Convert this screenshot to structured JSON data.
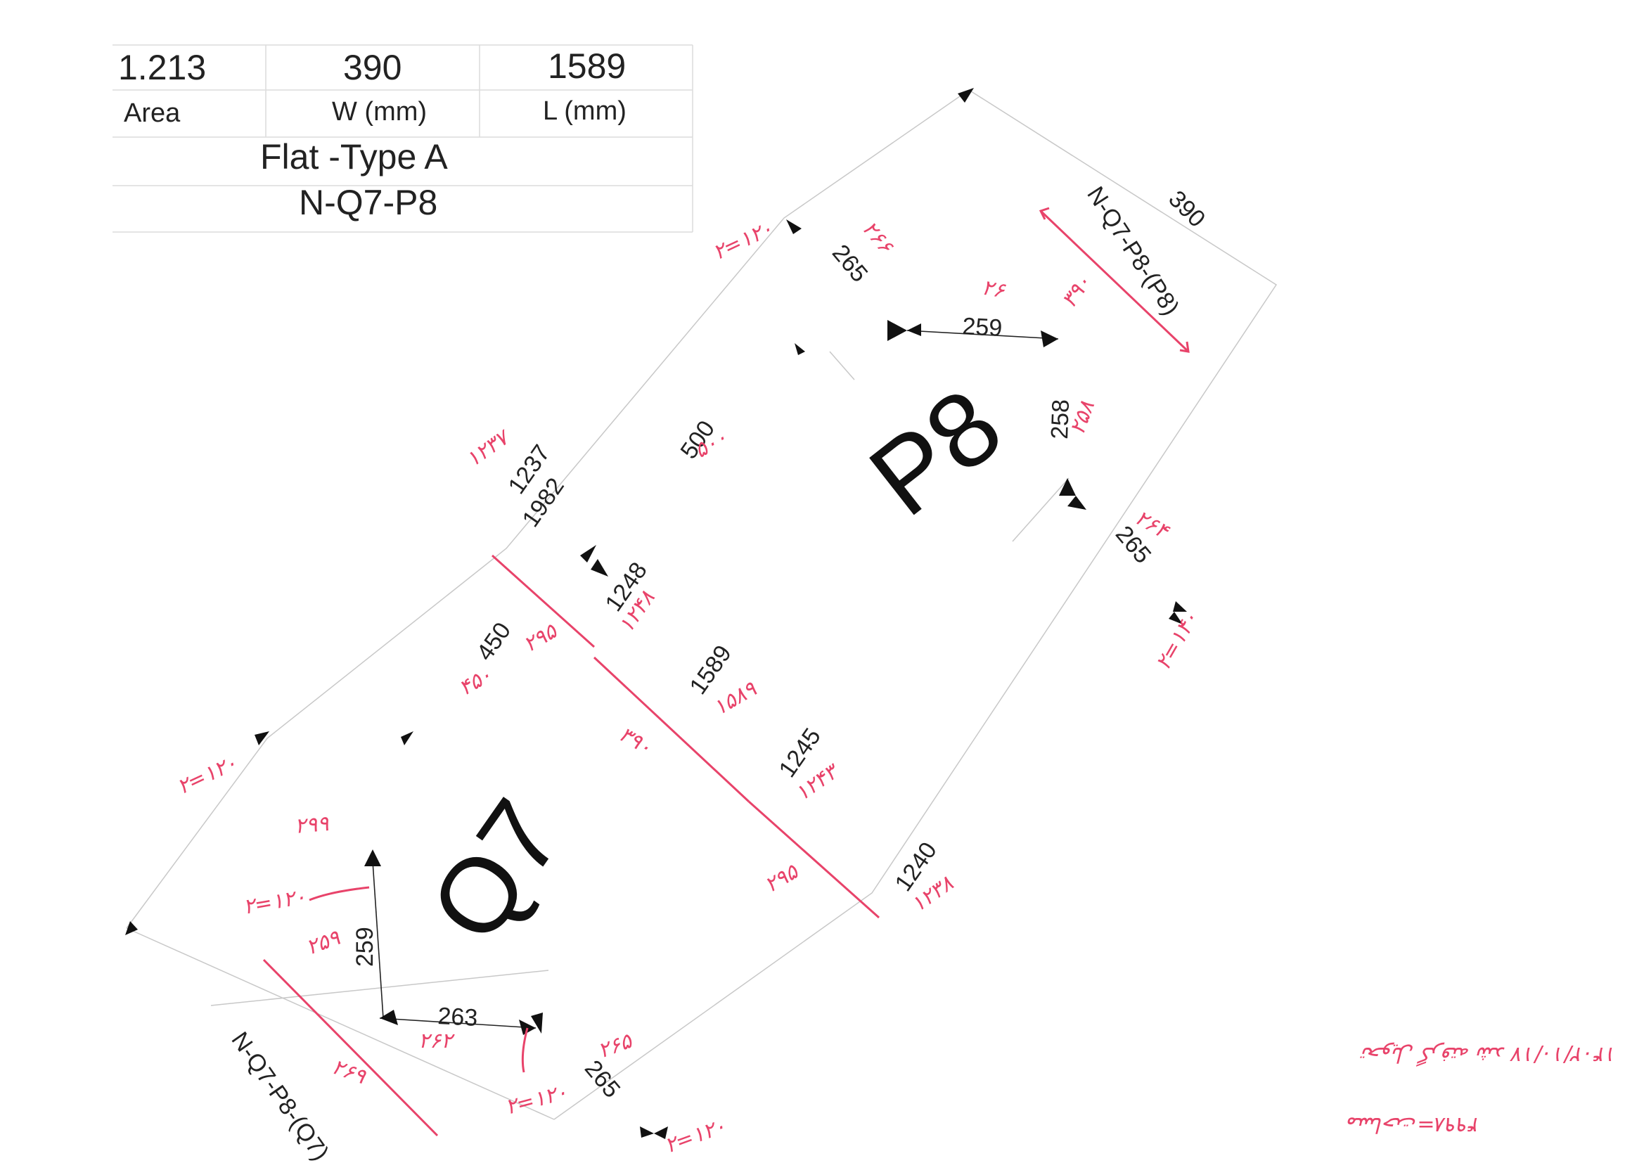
{
  "title_block": {
    "area_value": "1.213",
    "area_label": "Area",
    "width_value": "390",
    "width_label": "W (mm)",
    "length_value": "1589",
    "length_label": "L (mm)",
    "type_label": "Flat -Type A",
    "piece_code": "N-Q7-P8"
  },
  "labels": {
    "p8": "P8",
    "q7": "Q7",
    "edge_p8": "N-Q7-P8-(P8)",
    "edge_q7": "N-Q7-P8-(Q7)"
  },
  "dimensions": {
    "d390": "390",
    "d265_top": "265",
    "d259_top": "259",
    "d258": "258",
    "d265_right": "265",
    "d500": "500",
    "d1237": "1237",
    "d1982": "1982",
    "d1248": "1248",
    "d450": "450",
    "d1589": "1589",
    "d1245": "1245",
    "d1240": "1240",
    "d259_left": "259",
    "d263": "263",
    "d265_bottom": "265"
  },
  "handwriting": {
    "h1": "۲=۱۲۰",
    "h2": "۲۶۶",
    "h3": "۲۶",
    "h4": "۳۹۰",
    "h5": "۲۵۸",
    "h6": "۲۶۴",
    "h7": "۲=۱۴۰",
    "h8": "۱۲۳۷",
    "h9": "۵۰۰",
    "h10": "۱۲۴۸",
    "h11": "۲۹۵",
    "h12": "۴۵۰",
    "h13": "۱۵۸۹",
    "h14": "۳۹۰",
    "h15": "۱۲۴۳",
    "h16": "۲۹۵",
    "h17": "۱۲۳۸",
    "h18": "۲=۱۲۰",
    "h19": "۲۹۹",
    "h20": "۲=۱۲۰",
    "h21": "۲۵۹",
    "h22": "۲۶۲",
    "h23": "۲۶۹",
    "h24": "۲=۱۲۰",
    "h25": "۲۶۵",
    "h26": "۲=۱۲۰",
    "note1": "۱۴۰۲/۱۰/۱۷ تحویل گرفته شد",
    "note2": "مساحت=۴۹۹۸"
  },
  "colors": {
    "ink": "#222222",
    "handwriting": "#e8436a",
    "outline": "#c8c8c8"
  }
}
